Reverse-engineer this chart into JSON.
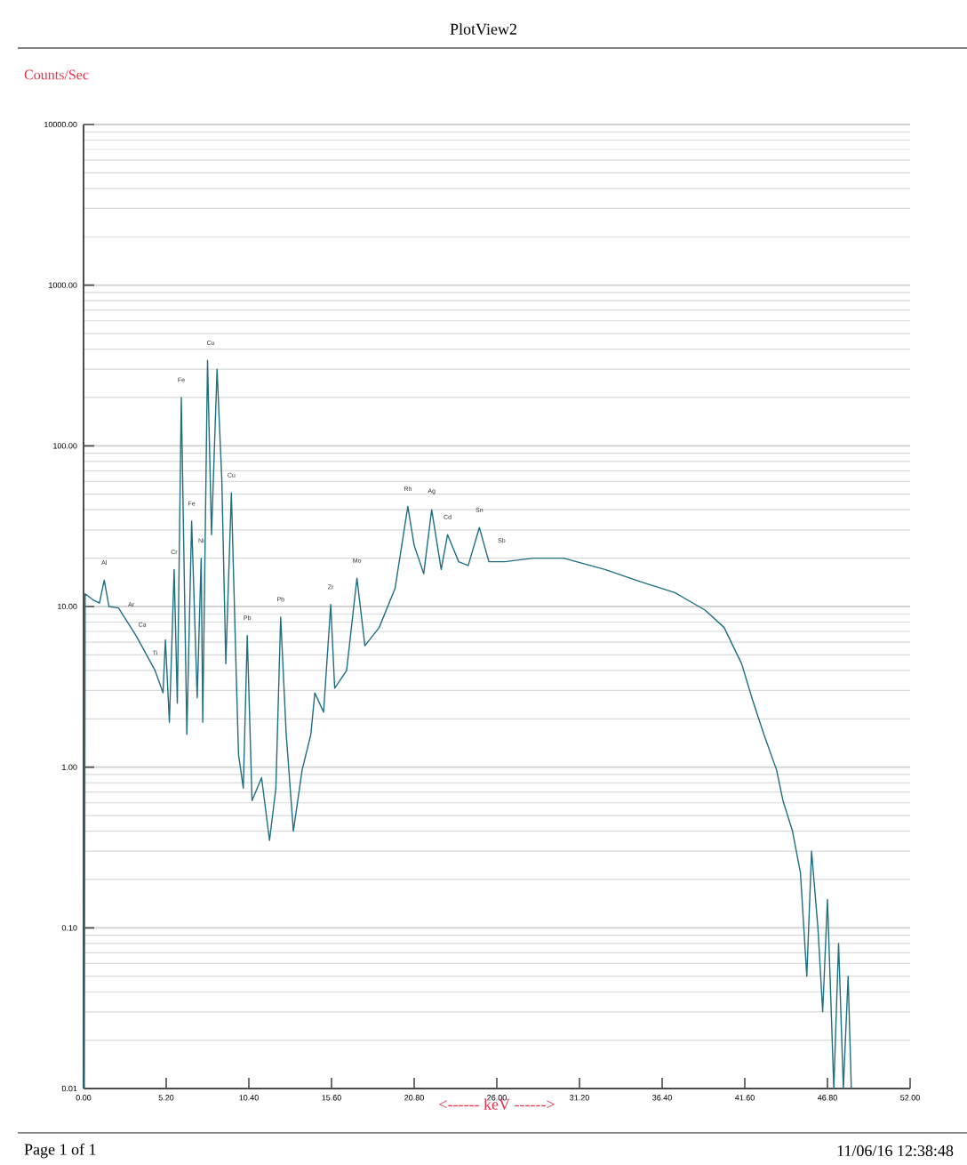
{
  "chart_data": {
    "type": "line",
    "title": "PlotView2",
    "xlabel": "<------ keV ------>",
    "ylabel": "Counts/Sec",
    "log": "y",
    "grid": "y",
    "marker": "none",
    "line_style": "solid",
    "xlim": [
      0,
      52
    ],
    "ylim": [
      0.01,
      10000
    ],
    "xticks": [
      {
        "value": 0,
        "label": "0.00"
      },
      {
        "value": 5.2,
        "label": "5.20"
      },
      {
        "value": 10.4,
        "label": "10.40"
      },
      {
        "value": 15.6,
        "label": "15.60"
      },
      {
        "value": 20.8,
        "label": "20.80"
      },
      {
        "value": 26,
        "label": "26.00"
      },
      {
        "value": 31.2,
        "label": "31.20"
      },
      {
        "value": 36.4,
        "label": "36.40"
      },
      {
        "value": 41.6,
        "label": "41.60"
      },
      {
        "value": 46.8,
        "label": "46.80"
      },
      {
        "value": 52,
        "label": "52.00"
      }
    ],
    "yticks": [
      0.01,
      {
        "value": 0.1,
        "label": "0.10"
      },
      {
        "value": 1,
        "label": "1.00"
      },
      {
        "value": 10,
        "label": "10.00"
      },
      {
        "value": 100,
        "label": "100.00"
      },
      {
        "value": 1000,
        "label": "1000.00"
      },
      {
        "value": 10000,
        "label": "10000.00"
      }
    ],
    "series": [
      {
        "color": "#1f6f82",
        "x": [
          0.05,
          0.1,
          0.6,
          1.0,
          1.3,
          1.6,
          2.2,
          3.3,
          4.5,
          5.0,
          5.15,
          5.4,
          5.7,
          5.9,
          6.15,
          6.5,
          6.8,
          7.15,
          7.4,
          7.5,
          7.8,
          8.05,
          8.4,
          8.7,
          8.95,
          9.3,
          9.6,
          9.75,
          10.05,
          10.3,
          10.6,
          11.2,
          11.7,
          12.1,
          12.4,
          12.75,
          13.2,
          13.75,
          14.3,
          14.55,
          15.1,
          15.55,
          15.8,
          16.55,
          17.2,
          17.7,
          18.6,
          19.6,
          20.4,
          20.8,
          21.4,
          21.9,
          22.5,
          22.9,
          23.6,
          24.2,
          24.9,
          25.5,
          26.5,
          28.3,
          30.2,
          32.8,
          35,
          37.2,
          39.1,
          40.3,
          41.4,
          42.1,
          42.8,
          43.6,
          44,
          44.6,
          45.1,
          45.5,
          45.8,
          46.2,
          46.5,
          46.8,
          47.2,
          47.5,
          47.8,
          48.1,
          48.3
        ],
        "values": [
          0.01,
          12,
          11,
          10.5,
          14.6,
          10,
          9.8,
          6.6,
          4,
          2.9,
          6.2,
          1.9,
          17,
          2.5,
          200,
          1.6,
          34,
          2.7,
          20,
          1.9,
          340,
          28,
          300,
          61,
          4.4,
          51,
          4,
          1.2,
          0.74,
          6.6,
          0.62,
          0.86,
          0.35,
          0.74,
          8.6,
          1.6,
          0.4,
          0.96,
          1.6,
          2.9,
          2.2,
          10.3,
          3.1,
          4,
          15,
          5.7,
          7.4,
          13,
          42,
          24,
          16,
          40,
          17,
          28,
          19,
          18,
          31,
          19,
          19,
          20,
          20,
          17,
          14.3,
          12.2,
          9.5,
          7.4,
          4.4,
          2.6,
          1.6,
          0.96,
          0.62,
          0.4,
          0.22,
          0.05,
          0.3,
          0.1,
          0.03,
          0.15,
          0.01,
          0.08,
          0.01,
          0.05,
          0.01
        ]
      }
    ],
    "annotations": [
      {
        "text": "Al",
        "x": 1.3,
        "y": 14.6
      },
      {
        "text": "Ar",
        "x": 3.0,
        "y": 8
      },
      {
        "text": "Ca",
        "x": 3.7,
        "y": 6
      },
      {
        "text": "Ti",
        "x": 4.5,
        "y": 4
      },
      {
        "text": "Cr",
        "x": 5.7,
        "y": 17
      },
      {
        "text": "Fe",
        "x": 6.15,
        "y": 200
      },
      {
        "text": "Fe",
        "x": 6.8,
        "y": 34
      },
      {
        "text": "Ni",
        "x": 7.4,
        "y": 20
      },
      {
        "text": "Cu",
        "x": 8.0,
        "y": 340
      },
      {
        "text": "Cu",
        "x": 9.3,
        "y": 51
      },
      {
        "text": "Pb",
        "x": 10.3,
        "y": 6.6
      },
      {
        "text": "Pb",
        "x": 12.4,
        "y": 8.6
      },
      {
        "text": "Zr",
        "x": 15.55,
        "y": 10.3
      },
      {
        "text": "Mo",
        "x": 17.2,
        "y": 15
      },
      {
        "text": "Rh",
        "x": 20.4,
        "y": 42
      },
      {
        "text": "Ag",
        "x": 21.9,
        "y": 40
      },
      {
        "text": "Cd",
        "x": 22.9,
        "y": 28
      },
      {
        "text": "Sn",
        "x": 24.9,
        "y": 31
      },
      {
        "text": "Sb",
        "x": 26.3,
        "y": 20
      },
      "Page 1 of 1",
      "11/06/16 12:38:48"
    ]
  }
}
